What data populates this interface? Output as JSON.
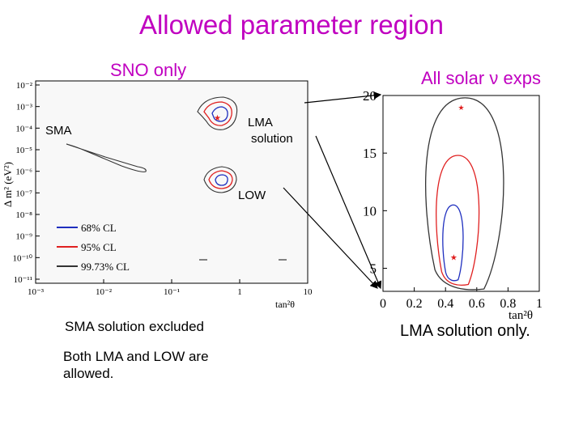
{
  "slide": {
    "title": "Allowed parameter region",
    "left_caption": "SNO only",
    "right_caption": "All solar ν exps",
    "note_sma_excluded": "SMA solution excluded",
    "note_both_allowed": "Both LMA and LOW are allowed.",
    "note_lma_only": "LMA solution only."
  },
  "colors": {
    "title": "#c000c0",
    "cl68": "#1f2fbf",
    "cl95": "#e02020",
    "cl9973": "#333333"
  },
  "chart_data": [
    {
      "type": "contour",
      "title": "",
      "xlabel": "tan²θ",
      "ylabel": "Δ m² (eV²)",
      "xscale": "log",
      "yscale": "log",
      "xlim": [
        0.001,
        10
      ],
      "ylim": [
        1e-11,
        0.01
      ],
      "x_ticks": [
        "10⁻³",
        "10⁻²",
        "10⁻¹",
        "1",
        "10"
      ],
      "y_ticks": [
        "10⁻²",
        "10⁻³",
        "10⁻⁴",
        "10⁻⁵",
        "10⁻⁶",
        "10⁻⁷",
        "10⁻⁸",
        "10⁻⁹",
        "10⁻¹⁰",
        "10⁻¹¹"
      ],
      "legend": {
        "placement": "bottom-left",
        "entries": [
          "68% CL",
          "95% CL",
          "99.73% CL"
        ]
      },
      "annotations": [
        "SMA",
        "LMA solution",
        "LOW"
      ],
      "regions": [
        {
          "name": "SMA",
          "cl": "99.73% CL",
          "x_range": [
            0.002,
            0.06
          ],
          "y_center": 3e-06
        },
        {
          "name": "LMA solution",
          "cl": [
            "68% CL",
            "95% CL",
            "99.73% CL"
          ],
          "best_fit": [
            0.4,
            6e-05
          ]
        },
        {
          "name": "LOW",
          "cl": [
            "68% CL",
            "95% CL",
            "99.73% CL"
          ],
          "center": [
            0.5,
            1e-07
          ]
        }
      ]
    },
    {
      "type": "contour",
      "title": "",
      "xlabel": "tan²θ",
      "ylabel": "",
      "xlim": [
        0,
        1
      ],
      "ylim": [
        3,
        20
      ],
      "x_ticks": [
        "0",
        "0.2",
        "0.4",
        "0.6",
        "0.8",
        "1"
      ],
      "y_ticks": [
        "5",
        "10",
        "15",
        "20"
      ],
      "best_fit": [
        0.45,
        6
      ],
      "contours": [
        {
          "cl": "68% CL",
          "x_range": [
            0.38,
            0.52
          ],
          "y_range": [
            4,
            10.5
          ]
        },
        {
          "cl": "95% CL",
          "x_range": [
            0.33,
            0.63
          ],
          "y_range": [
            3.6,
            14.8
          ]
        },
        {
          "cl": "99.73% CL",
          "x_range": [
            0.25,
            0.8
          ],
          "y_range": [
            3.2,
            19.8
          ]
        }
      ]
    }
  ]
}
